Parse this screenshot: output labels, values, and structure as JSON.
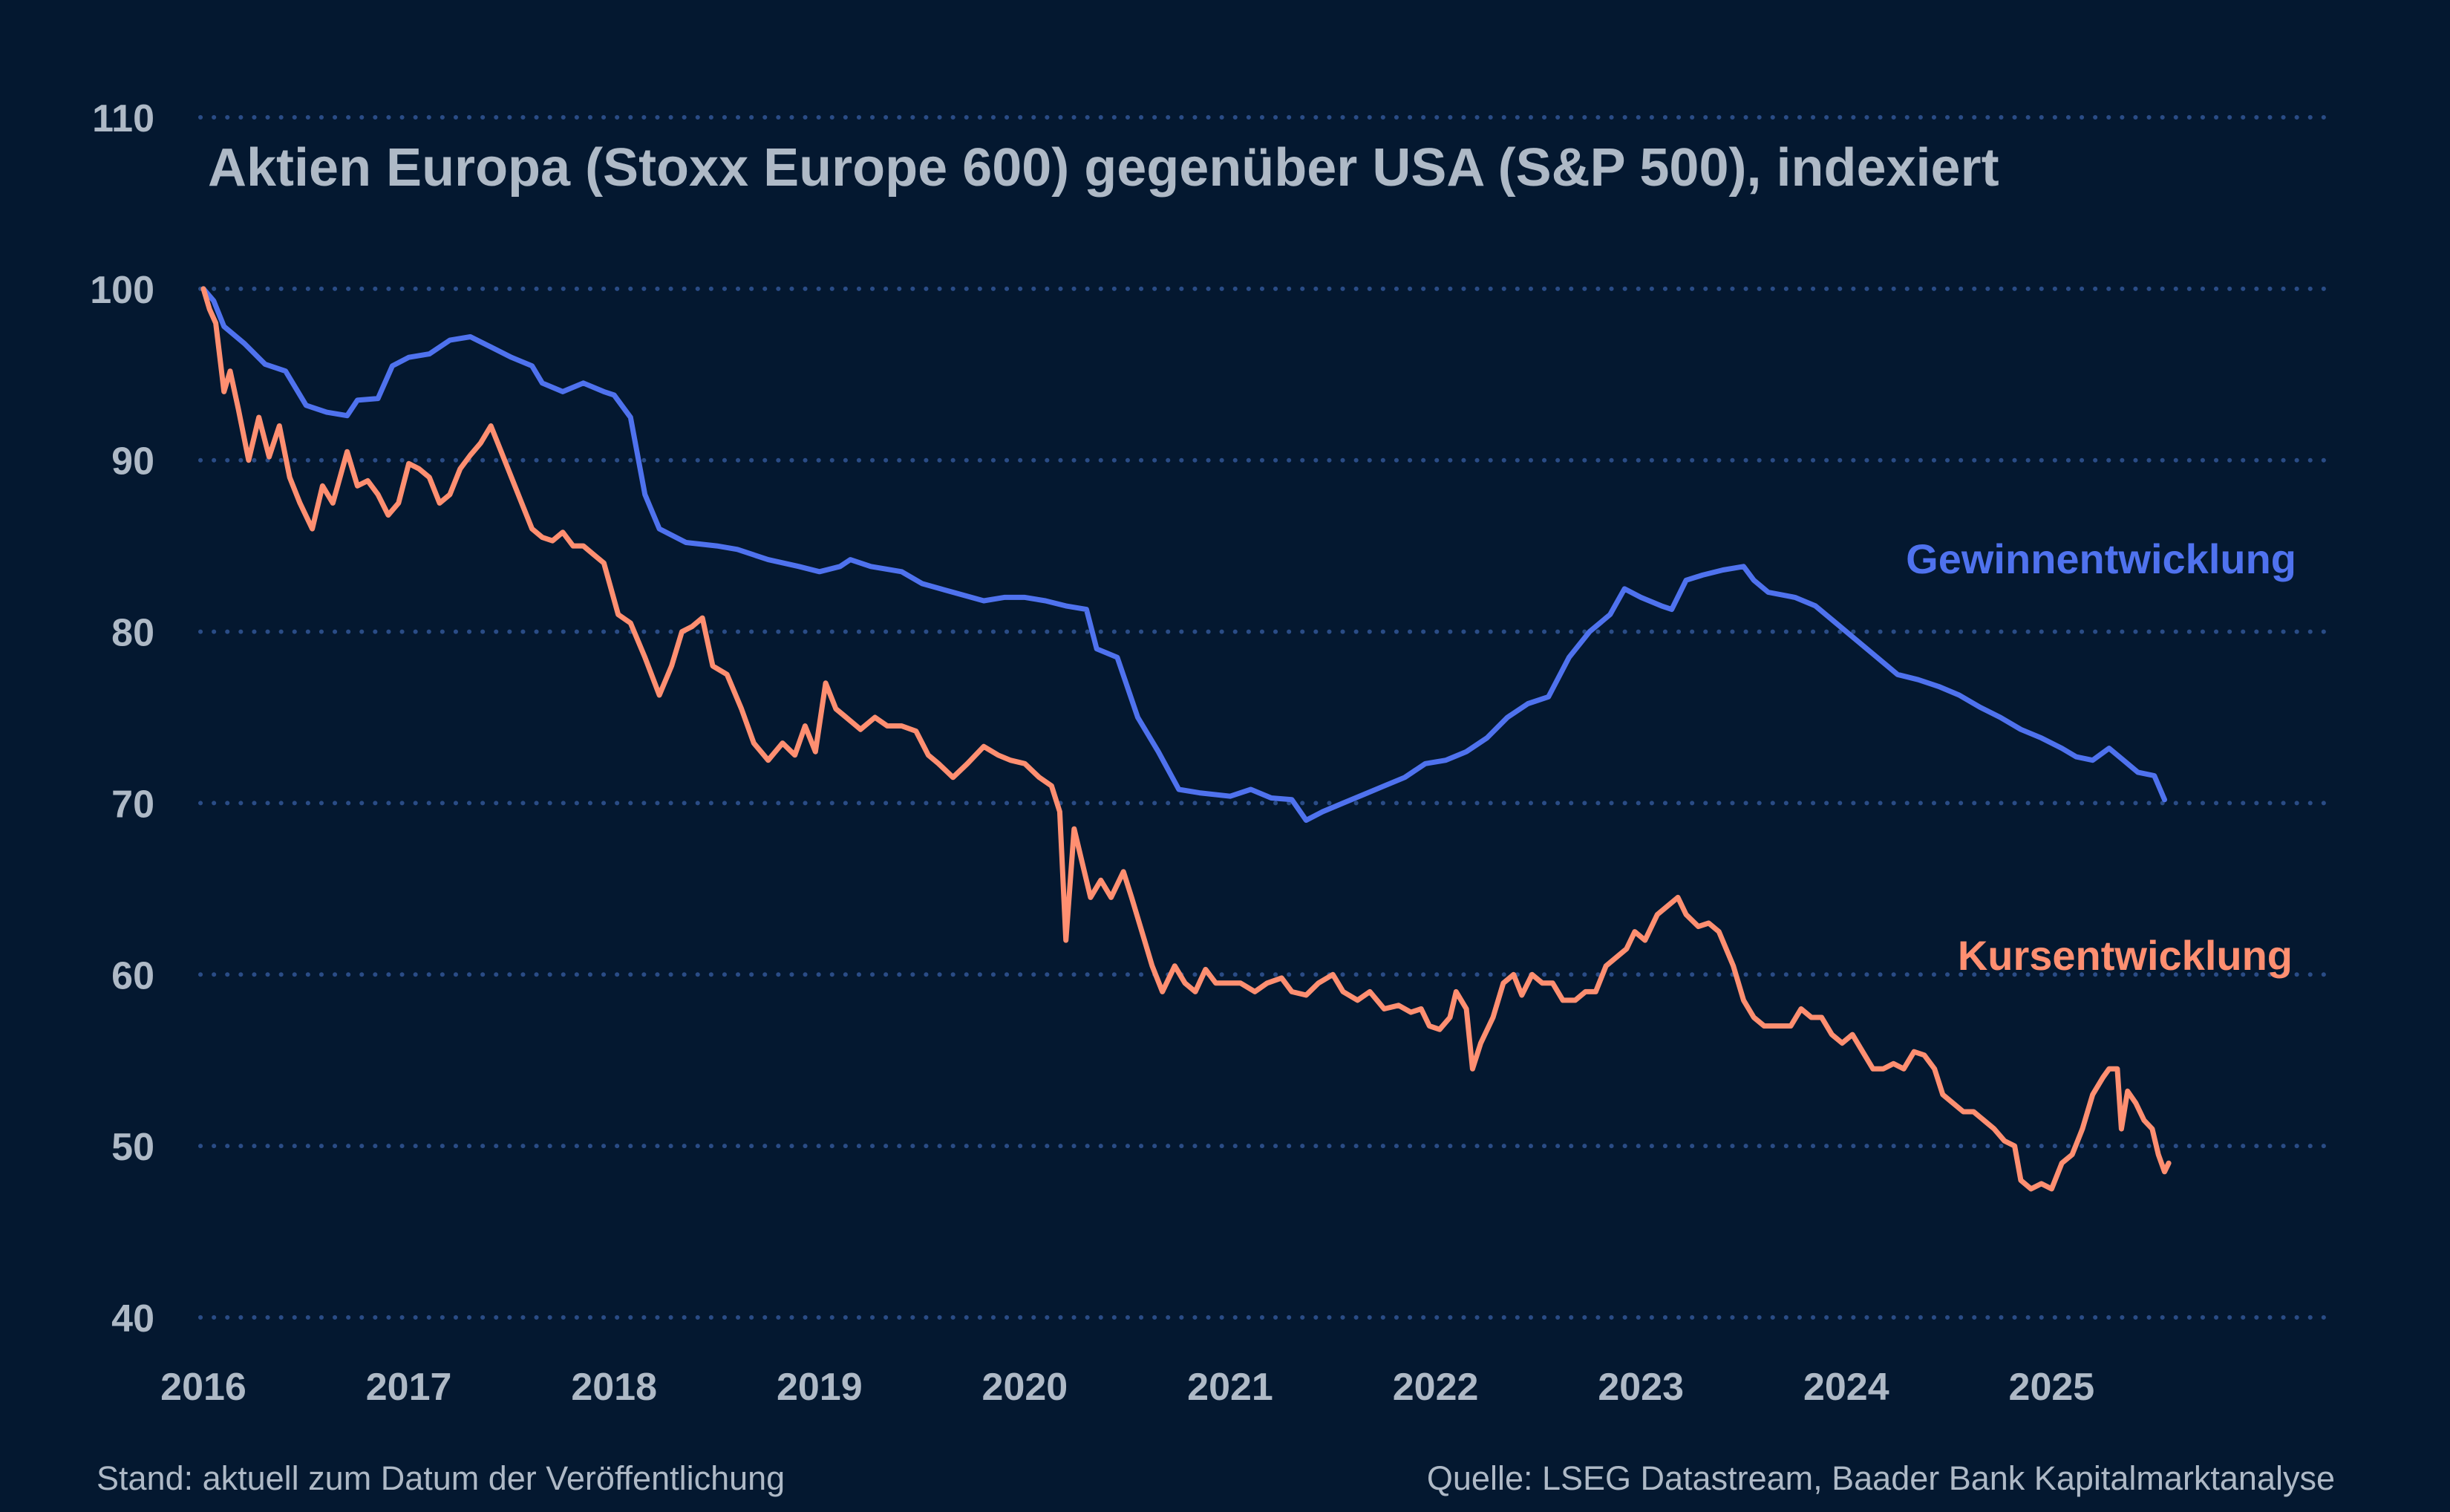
{
  "chart_data": {
    "type": "line",
    "title": "Aktien Europa (Stoxx Europe 600) gegenüber USA (S&P 500), indexiert",
    "xlabel": "",
    "ylabel": "",
    "xlim": [
      2016.0,
      2026.0
    ],
    "ylim": [
      40,
      110
    ],
    "yticks": [
      "40",
      "50",
      "60",
      "70",
      "80",
      "90",
      "100",
      "110"
    ],
    "xticks": [
      "2016",
      "2017",
      "2018",
      "2019",
      "2020",
      "2021",
      "2022",
      "2023",
      "2024",
      "2025"
    ],
    "grid": "horizontal dotted",
    "series": [
      {
        "name": "Gewinnentwicklung",
        "color": "#4f72ee",
        "points": [
          [
            2016.0,
            100.0
          ],
          [
            2016.05,
            99.3
          ],
          [
            2016.1,
            97.8
          ],
          [
            2016.2,
            96.8
          ],
          [
            2016.3,
            95.6
          ],
          [
            2016.4,
            95.2
          ],
          [
            2016.5,
            93.2
          ],
          [
            2016.6,
            92.8
          ],
          [
            2016.7,
            92.6
          ],
          [
            2016.75,
            93.5
          ],
          [
            2016.85,
            93.6
          ],
          [
            2016.92,
            95.5
          ],
          [
            2017.0,
            96.0
          ],
          [
            2017.1,
            96.2
          ],
          [
            2017.2,
            97.0
          ],
          [
            2017.3,
            97.2
          ],
          [
            2017.4,
            96.6
          ],
          [
            2017.5,
            96.0
          ],
          [
            2017.6,
            95.5
          ],
          [
            2017.65,
            94.5
          ],
          [
            2017.75,
            94.0
          ],
          [
            2017.85,
            94.5
          ],
          [
            2017.95,
            94.0
          ],
          [
            2018.0,
            93.8
          ],
          [
            2018.08,
            92.5
          ],
          [
            2018.15,
            88.0
          ],
          [
            2018.22,
            86.0
          ],
          [
            2018.35,
            85.2
          ],
          [
            2018.5,
            85.0
          ],
          [
            2018.6,
            84.8
          ],
          [
            2018.75,
            84.2
          ],
          [
            2018.9,
            83.8
          ],
          [
            2019.0,
            83.5
          ],
          [
            2019.1,
            83.8
          ],
          [
            2019.15,
            84.2
          ],
          [
            2019.25,
            83.8
          ],
          [
            2019.4,
            83.5
          ],
          [
            2019.5,
            82.8
          ],
          [
            2019.65,
            82.3
          ],
          [
            2019.8,
            81.8
          ],
          [
            2019.9,
            82.0
          ],
          [
            2020.0,
            82.0
          ],
          [
            2020.1,
            81.8
          ],
          [
            2020.2,
            81.5
          ],
          [
            2020.3,
            81.3
          ],
          [
            2020.35,
            79.0
          ],
          [
            2020.45,
            78.5
          ],
          [
            2020.55,
            75.0
          ],
          [
            2020.65,
            73.0
          ],
          [
            2020.75,
            70.8
          ],
          [
            2020.85,
            70.6
          ],
          [
            2021.0,
            70.4
          ],
          [
            2021.1,
            70.8
          ],
          [
            2021.2,
            70.3
          ],
          [
            2021.3,
            70.2
          ],
          [
            2021.37,
            69.0
          ],
          [
            2021.45,
            69.5
          ],
          [
            2021.55,
            70.0
          ],
          [
            2021.65,
            70.5
          ],
          [
            2021.75,
            71.0
          ],
          [
            2021.85,
            71.5
          ],
          [
            2021.95,
            72.3
          ],
          [
            2022.05,
            72.5
          ],
          [
            2022.15,
            73.0
          ],
          [
            2022.25,
            73.8
          ],
          [
            2022.35,
            75.0
          ],
          [
            2022.45,
            75.8
          ],
          [
            2022.55,
            76.2
          ],
          [
            2022.65,
            78.5
          ],
          [
            2022.75,
            80.0
          ],
          [
            2022.85,
            81.0
          ],
          [
            2022.92,
            82.5
          ],
          [
            2023.0,
            82.0
          ],
          [
            2023.1,
            81.5
          ],
          [
            2023.15,
            81.3
          ],
          [
            2023.22,
            83.0
          ],
          [
            2023.3,
            83.3
          ],
          [
            2023.4,
            83.6
          ],
          [
            2023.5,
            83.8
          ],
          [
            2023.55,
            83.0
          ],
          [
            2023.62,
            82.3
          ],
          [
            2023.75,
            82.0
          ],
          [
            2023.85,
            81.5
          ],
          [
            2023.95,
            80.5
          ],
          [
            2024.05,
            79.5
          ],
          [
            2024.15,
            78.5
          ],
          [
            2024.25,
            77.5
          ],
          [
            2024.35,
            77.2
          ],
          [
            2024.45,
            76.8
          ],
          [
            2024.55,
            76.3
          ],
          [
            2024.65,
            75.6
          ],
          [
            2024.75,
            75.0
          ],
          [
            2024.85,
            74.3
          ],
          [
            2024.95,
            73.8
          ],
          [
            2025.05,
            73.2
          ],
          [
            2025.12,
            72.7
          ],
          [
            2025.2,
            72.5
          ],
          [
            2025.28,
            73.2
          ],
          [
            2025.35,
            72.5
          ],
          [
            2025.42,
            71.8
          ],
          [
            2025.5,
            71.6
          ],
          [
            2025.55,
            70.2
          ]
        ]
      },
      {
        "name": "Kursentwicklung",
        "color": "#ff8f71",
        "points": [
          [
            2016.0,
            100.0
          ],
          [
            2016.03,
            98.8
          ],
          [
            2016.06,
            98.0
          ],
          [
            2016.1,
            94.0
          ],
          [
            2016.13,
            95.2
          ],
          [
            2016.17,
            93.0
          ],
          [
            2016.22,
            90.0
          ],
          [
            2016.27,
            92.5
          ],
          [
            2016.32,
            90.2
          ],
          [
            2016.37,
            92.0
          ],
          [
            2016.42,
            89.0
          ],
          [
            2016.47,
            87.5
          ],
          [
            2016.53,
            86.0
          ],
          [
            2016.58,
            88.5
          ],
          [
            2016.63,
            87.5
          ],
          [
            2016.7,
            90.5
          ],
          [
            2016.75,
            88.5
          ],
          [
            2016.8,
            88.8
          ],
          [
            2016.85,
            88.0
          ],
          [
            2016.9,
            86.8
          ],
          [
            2016.95,
            87.5
          ],
          [
            2017.0,
            89.8
          ],
          [
            2017.05,
            89.5
          ],
          [
            2017.1,
            89.0
          ],
          [
            2017.15,
            87.5
          ],
          [
            2017.2,
            88.0
          ],
          [
            2017.25,
            89.5
          ],
          [
            2017.3,
            90.3
          ],
          [
            2017.35,
            91.0
          ],
          [
            2017.4,
            92.0
          ],
          [
            2017.45,
            90.5
          ],
          [
            2017.5,
            89.0
          ],
          [
            2017.55,
            87.5
          ],
          [
            2017.6,
            86.0
          ],
          [
            2017.65,
            85.5
          ],
          [
            2017.7,
            85.3
          ],
          [
            2017.75,
            85.8
          ],
          [
            2017.8,
            85.0
          ],
          [
            2017.85,
            85.0
          ],
          [
            2017.9,
            84.5
          ],
          [
            2017.95,
            84.0
          ],
          [
            2018.02,
            81.0
          ],
          [
            2018.08,
            80.5
          ],
          [
            2018.15,
            78.5
          ],
          [
            2018.22,
            76.3
          ],
          [
            2018.28,
            78.0
          ],
          [
            2018.33,
            80.0
          ],
          [
            2018.38,
            80.3
          ],
          [
            2018.43,
            80.8
          ],
          [
            2018.48,
            78.0
          ],
          [
            2018.55,
            77.5
          ],
          [
            2018.62,
            75.5
          ],
          [
            2018.68,
            73.5
          ],
          [
            2018.75,
            72.5
          ],
          [
            2018.82,
            73.5
          ],
          [
            2018.88,
            72.8
          ],
          [
            2018.93,
            74.5
          ],
          [
            2018.98,
            73.0
          ],
          [
            2019.03,
            77.0
          ],
          [
            2019.08,
            75.5
          ],
          [
            2019.13,
            75.0
          ],
          [
            2019.2,
            74.3
          ],
          [
            2019.27,
            75.0
          ],
          [
            2019.33,
            74.5
          ],
          [
            2019.4,
            74.5
          ],
          [
            2019.47,
            74.2
          ],
          [
            2019.53,
            72.8
          ],
          [
            2019.58,
            72.3
          ],
          [
            2019.65,
            71.5
          ],
          [
            2019.72,
            72.3
          ],
          [
            2019.8,
            73.3
          ],
          [
            2019.87,
            72.8
          ],
          [
            2019.93,
            72.5
          ],
          [
            2020.0,
            72.3
          ],
          [
            2020.07,
            71.5
          ],
          [
            2020.13,
            71.0
          ],
          [
            2020.17,
            69.5
          ],
          [
            2020.2,
            62.0
          ],
          [
            2020.24,
            68.5
          ],
          [
            2020.28,
            66.5
          ],
          [
            2020.32,
            64.5
          ],
          [
            2020.37,
            65.5
          ],
          [
            2020.42,
            64.5
          ],
          [
            2020.48,
            66.0
          ],
          [
            2020.52,
            64.5
          ],
          [
            2020.57,
            62.5
          ],
          [
            2020.62,
            60.5
          ],
          [
            2020.67,
            59.0
          ],
          [
            2020.73,
            60.5
          ],
          [
            2020.78,
            59.5
          ],
          [
            2020.83,
            59.0
          ],
          [
            2020.88,
            60.3
          ],
          [
            2020.93,
            59.5
          ],
          [
            2020.98,
            59.5
          ],
          [
            2021.05,
            59.5
          ],
          [
            2021.12,
            59.0
          ],
          [
            2021.18,
            59.5
          ],
          [
            2021.25,
            59.8
          ],
          [
            2021.3,
            59.0
          ],
          [
            2021.37,
            58.8
          ],
          [
            2021.43,
            59.5
          ],
          [
            2021.5,
            60.0
          ],
          [
            2021.55,
            59.0
          ],
          [
            2021.62,
            58.5
          ],
          [
            2021.68,
            59.0
          ],
          [
            2021.75,
            58.0
          ],
          [
            2021.82,
            58.2
          ],
          [
            2021.88,
            57.8
          ],
          [
            2021.93,
            58.0
          ],
          [
            2021.97,
            57.0
          ],
          [
            2022.02,
            56.8
          ],
          [
            2022.07,
            57.5
          ],
          [
            2022.1,
            59.0
          ],
          [
            2022.15,
            58.0
          ],
          [
            2022.18,
            54.5
          ],
          [
            2022.22,
            56.0
          ],
          [
            2022.28,
            57.5
          ],
          [
            2022.33,
            59.5
          ],
          [
            2022.38,
            60.0
          ],
          [
            2022.42,
            58.8
          ],
          [
            2022.47,
            60.0
          ],
          [
            2022.52,
            59.5
          ],
          [
            2022.57,
            59.5
          ],
          [
            2022.62,
            58.5
          ],
          [
            2022.68,
            58.5
          ],
          [
            2022.73,
            59.0
          ],
          [
            2022.78,
            59.0
          ],
          [
            2022.83,
            60.5
          ],
          [
            2022.88,
            61.0
          ],
          [
            2022.93,
            61.5
          ],
          [
            2022.97,
            62.5
          ],
          [
            2023.02,
            62.0
          ],
          [
            2023.08,
            63.5
          ],
          [
            2023.13,
            64.0
          ],
          [
            2023.18,
            64.5
          ],
          [
            2023.22,
            63.5
          ],
          [
            2023.28,
            62.8
          ],
          [
            2023.33,
            63.0
          ],
          [
            2023.38,
            62.5
          ],
          [
            2023.45,
            60.5
          ],
          [
            2023.5,
            58.5
          ],
          [
            2023.55,
            57.5
          ],
          [
            2023.6,
            57.0
          ],
          [
            2023.67,
            57.0
          ],
          [
            2023.73,
            57.0
          ],
          [
            2023.78,
            58.0
          ],
          [
            2023.83,
            57.5
          ],
          [
            2023.88,
            57.5
          ],
          [
            2023.93,
            56.5
          ],
          [
            2023.98,
            56.0
          ],
          [
            2024.03,
            56.5
          ],
          [
            2024.08,
            55.5
          ],
          [
            2024.13,
            54.5
          ],
          [
            2024.18,
            54.5
          ],
          [
            2024.23,
            54.8
          ],
          [
            2024.28,
            54.5
          ],
          [
            2024.33,
            55.5
          ],
          [
            2024.38,
            55.3
          ],
          [
            2024.43,
            54.5
          ],
          [
            2024.47,
            53.0
          ],
          [
            2024.52,
            52.5
          ],
          [
            2024.57,
            52.0
          ],
          [
            2024.62,
            52.0
          ],
          [
            2024.67,
            51.5
          ],
          [
            2024.72,
            51.0
          ],
          [
            2024.77,
            50.3
          ],
          [
            2024.82,
            50.0
          ],
          [
            2024.85,
            48.0
          ],
          [
            2024.9,
            47.5
          ],
          [
            2024.95,
            47.8
          ],
          [
            2025.0,
            47.5
          ],
          [
            2025.05,
            49.0
          ],
          [
            2025.1,
            49.5
          ],
          [
            2025.15,
            51.0
          ],
          [
            2025.2,
            53.0
          ],
          [
            2025.25,
            54.0
          ],
          [
            2025.28,
            54.5
          ],
          [
            2025.32,
            54.5
          ],
          [
            2025.34,
            51.0
          ],
          [
            2025.37,
            53.2
          ],
          [
            2025.41,
            52.5
          ],
          [
            2025.45,
            51.5
          ],
          [
            2025.49,
            51.0
          ],
          [
            2025.52,
            49.5
          ],
          [
            2025.55,
            48.5
          ],
          [
            2025.57,
            49.0
          ]
        ]
      }
    ]
  },
  "series_labels": {
    "earnings": "Gewinnentwicklung",
    "price": "Kursentwicklung"
  },
  "footer": {
    "left": "Stand: aktuell zum Datum der Veröffentlichung",
    "right": "Quelle: LSEG Datastream, Baader Bank Kapitalmarktanalyse"
  },
  "colors": {
    "background": "#041830",
    "text": "#aeb9c6",
    "grid": "#2a4c86"
  }
}
